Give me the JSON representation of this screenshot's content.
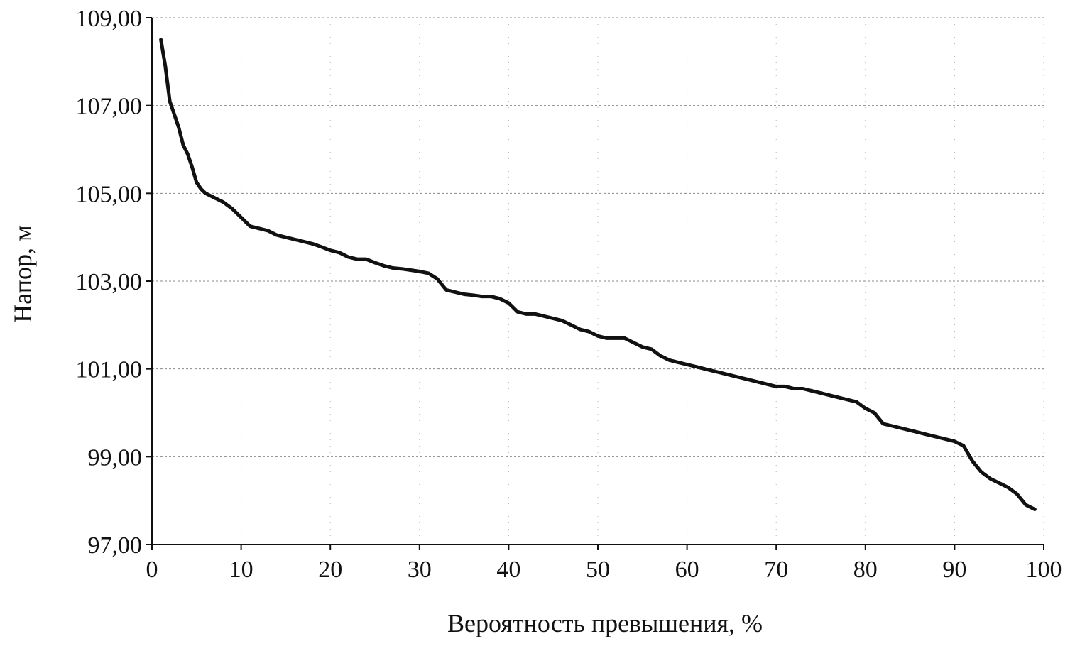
{
  "chart_data": {
    "type": "line",
    "title": "",
    "xlabel": "Вероятность превышения, %",
    "ylabel": "Напор, м",
    "xlim": [
      0,
      100
    ],
    "ylim": [
      97,
      109
    ],
    "x_ticks": [
      "0",
      "10",
      "20",
      "30",
      "40",
      "50",
      "60",
      "70",
      "80",
      "90",
      "100"
    ],
    "y_ticks": [
      "97,00",
      "99,00",
      "101,00",
      "103,00",
      "105,00",
      "107,00",
      "109,00"
    ],
    "grid": true,
    "legend": "none",
    "line_color": "#111111",
    "series": [
      {
        "x": [
          1,
          1.5,
          2,
          2.5,
          3,
          3.5,
          4,
          4.5,
          5,
          5.5,
          6,
          7,
          8,
          9,
          10,
          11,
          12,
          13,
          14,
          15,
          16,
          17,
          18,
          19,
          20,
          21,
          22,
          23,
          24,
          25,
          26,
          27,
          28,
          29,
          30,
          31,
          32,
          33,
          34,
          35,
          36,
          37,
          38,
          39,
          40,
          41,
          42,
          43,
          44,
          45,
          46,
          47,
          48,
          49,
          50,
          51,
          52,
          53,
          54,
          55,
          56,
          57,
          58,
          59,
          60,
          61,
          62,
          63,
          64,
          65,
          66,
          67,
          68,
          69,
          70,
          71,
          72,
          73,
          74,
          75,
          76,
          77,
          78,
          79,
          80,
          81,
          82,
          83,
          84,
          85,
          86,
          87,
          88,
          89,
          90,
          91,
          92,
          93,
          94,
          95,
          96,
          97,
          98,
          99
        ],
        "y": [
          108.5,
          107.9,
          107.1,
          106.8,
          106.5,
          106.1,
          105.9,
          105.6,
          105.25,
          105.1,
          105.0,
          104.9,
          104.8,
          104.65,
          104.45,
          104.25,
          104.2,
          104.15,
          104.05,
          104.0,
          103.95,
          103.9,
          103.85,
          103.78,
          103.7,
          103.65,
          103.55,
          103.5,
          103.5,
          103.42,
          103.35,
          103.3,
          103.28,
          103.25,
          103.22,
          103.18,
          103.05,
          102.8,
          102.75,
          102.7,
          102.68,
          102.65,
          102.65,
          102.6,
          102.5,
          102.3,
          102.25,
          102.25,
          102.2,
          102.15,
          102.1,
          102.0,
          101.9,
          101.85,
          101.75,
          101.7,
          101.7,
          101.7,
          101.6,
          101.5,
          101.45,
          101.3,
          101.2,
          101.15,
          101.1,
          101.05,
          101.0,
          100.95,
          100.9,
          100.85,
          100.8,
          100.75,
          100.7,
          100.65,
          100.6,
          100.6,
          100.55,
          100.55,
          100.5,
          100.45,
          100.4,
          100.35,
          100.3,
          100.25,
          100.1,
          100.0,
          99.75,
          99.7,
          99.65,
          99.6,
          99.55,
          99.5,
          99.45,
          99.4,
          99.35,
          99.25,
          98.9,
          98.65,
          98.5,
          98.4,
          98.3,
          98.15,
          97.9,
          97.8
        ]
      }
    ]
  }
}
